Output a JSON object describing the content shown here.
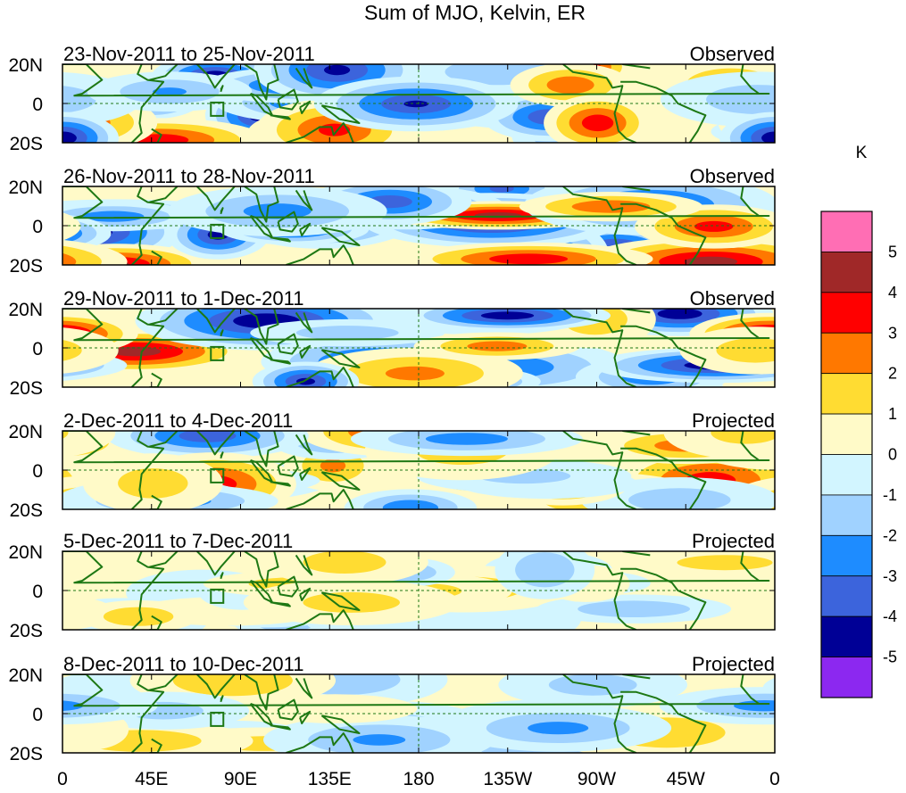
{
  "chart_data": {
    "type": "heatmap",
    "title": "Sum of MJO, Kelvin, ER",
    "units": "K",
    "x_ticks": [
      "0",
      "45E",
      "90E",
      "135E",
      "180",
      "135W",
      "90W",
      "45W",
      "0"
    ],
    "x_tick_lons": [
      0,
      45,
      90,
      135,
      180,
      225,
      270,
      315,
      360
    ],
    "y_ticks": [
      "20N",
      "0",
      "20S"
    ],
    "y_tick_lats": [
      20,
      0,
      -20
    ],
    "xlim": [
      0,
      360
    ],
    "ylim": [
      -20,
      20
    ],
    "colorbar": {
      "labels": [
        "5",
        "4",
        "3",
        "2",
        "1",
        "0",
        "-1",
        "-2",
        "-3",
        "-4",
        "-5"
      ],
      "bounds": [
        5,
        4,
        3,
        2,
        1,
        0,
        -1,
        -2,
        -3,
        -4,
        -5
      ],
      "colors": [
        "#ff6eb4",
        "#a02828",
        "#ff0000",
        "#ff7800",
        "#ffdc32",
        "#fffac8",
        "#d2f5ff",
        "#a0d2ff",
        "#1e8cff",
        "#3c64dc",
        "#000096",
        "#8c28f0"
      ]
    },
    "panels": [
      {
        "date_range": "23-Nov-2011 to 25-Nov-2011",
        "status": "Observed",
        "amp": 1.0,
        "seed": 11
      },
      {
        "date_range": "26-Nov-2011 to 28-Nov-2011",
        "status": "Observed",
        "amp": 1.0,
        "seed": 23
      },
      {
        "date_range": "29-Nov-2011 to 1-Dec-2011",
        "status": "Observed",
        "amp": 1.0,
        "seed": 37
      },
      {
        "date_range": "2-Dec-2011 to 4-Dec-2011",
        "status": "Projected",
        "amp": 0.75,
        "seed": 41
      },
      {
        "date_range": "5-Dec-2011 to 7-Dec-2011",
        "status": "Projected",
        "amp": 0.5,
        "seed": 53
      },
      {
        "date_range": "8-Dec-2011 to 10-Dec-2011",
        "status": "Projected",
        "amp": 0.55,
        "seed": 67
      }
    ],
    "colors": {
      "coast": "#1e7814",
      "box": "#1e7814",
      "grid": "#1e7814"
    }
  }
}
